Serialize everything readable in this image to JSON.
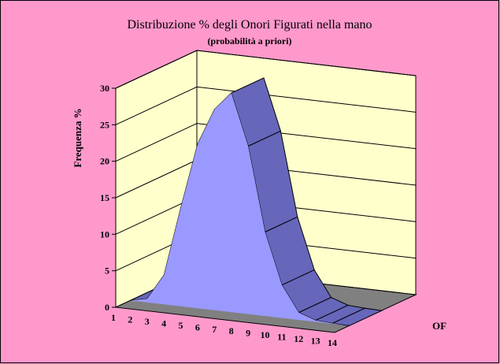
{
  "chart_data": {
    "type": "area",
    "title": "Distribuzione % degli Onori Figurati nella mano",
    "subtitle": "(probabilità a priori)",
    "xlabel": "OF",
    "ylabel": "Frequenza %",
    "categories": [
      "1",
      "2",
      "3",
      "4",
      "5",
      "6",
      "7",
      "8",
      "9",
      "10",
      "11",
      "12",
      "13",
      "14"
    ],
    "values": [
      0.0,
      0.5,
      4.0,
      13.5,
      22.5,
      27.5,
      30.0,
      23.0,
      11.5,
      4.5,
      1.0,
      0.2,
      0.05,
      0.0
    ],
    "ylim": [
      0,
      30
    ],
    "yticks": [
      "0",
      "5",
      "10",
      "15",
      "20",
      "25",
      "30"
    ],
    "three_d": true,
    "grid": true,
    "colors": {
      "background": "#ff99cc",
      "wall": "#ffffcc",
      "floor": "#808080",
      "front": "#9999ff",
      "top": "#6666bb"
    }
  }
}
